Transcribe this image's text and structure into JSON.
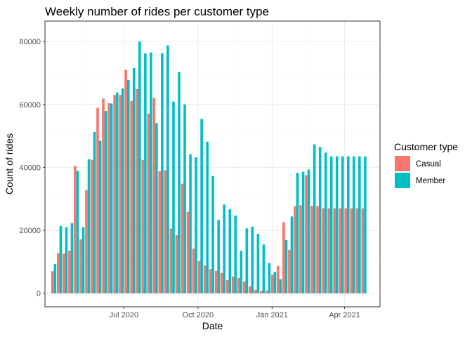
{
  "chart_data": {
    "type": "bar",
    "title": "Weekly number of rides per customer type",
    "xlabel": "Date",
    "ylabel": "Count of rides",
    "x_ticks": [
      "Jul 2020",
      "Oct 2020",
      "Jan 2021",
      "Apr 2021"
    ],
    "y_ticks": [
      "0",
      "20000",
      "40000",
      "60000",
      "80000"
    ],
    "ylim": [
      0,
      82000
    ],
    "grid": true,
    "legend": {
      "title": "Customer type",
      "position": "right"
    },
    "x_dates": [
      "2020-04-05",
      "2020-04-12",
      "2020-04-19",
      "2020-04-26",
      "2020-05-03",
      "2020-05-10",
      "2020-05-17",
      "2020-05-24",
      "2020-05-31",
      "2020-06-07",
      "2020-06-14",
      "2020-06-21",
      "2020-06-28",
      "2020-07-05",
      "2020-07-12",
      "2020-07-19",
      "2020-07-26",
      "2020-08-02",
      "2020-08-09",
      "2020-08-16",
      "2020-08-23",
      "2020-08-30",
      "2020-09-06",
      "2020-09-13",
      "2020-09-20",
      "2020-09-27",
      "2020-10-04",
      "2020-10-11",
      "2020-10-18",
      "2020-10-25",
      "2020-11-01",
      "2020-11-08",
      "2020-11-15",
      "2020-11-22",
      "2020-11-29",
      "2020-12-06",
      "2020-12-13",
      "2020-12-20",
      "2020-12-27",
      "2021-01-03",
      "2021-01-10",
      "2021-01-17",
      "2021-01-24",
      "2021-01-31",
      "2021-02-07",
      "2021-02-14",
      "2021-02-21",
      "2021-02-28",
      "2021-03-07",
      "2021-03-14",
      "2021-03-21",
      "2021-03-28",
      "2021-04-04",
      "2021-04-11",
      "2021-04-18",
      "2021-04-25"
    ],
    "series": [
      {
        "name": "Casual",
        "color": "#F8766D",
        "values": [
          7000,
          12800,
          12600,
          13500,
          40500,
          17200,
          32800,
          42400,
          58900,
          61900,
          60400,
          63000,
          63000,
          71000,
          61100,
          64900,
          42400,
          57100,
          62100,
          38800,
          39100,
          20600,
          18500,
          34800,
          25900,
          14200,
          10200,
          8800,
          7700,
          7100,
          6500,
          4200,
          5300,
          4900,
          3800,
          2200,
          1100,
          800,
          900,
          5900,
          8700,
          22600,
          13800,
          27700,
          28000,
          37500,
          27800,
          27700,
          27000,
          27000,
          27000,
          27000,
          27000,
          27000,
          27000,
          27000
        ]
      },
      {
        "name": "Member",
        "color": "#00BFC4",
        "values": [
          9300,
          21400,
          21000,
          22300,
          38900,
          21000,
          42600,
          51300,
          48500,
          57900,
          60300,
          63800,
          65100,
          67800,
          71600,
          80000,
          76200,
          76500,
          54100,
          76300,
          78800,
          60900,
          70300,
          60000,
          44200,
          43200,
          55400,
          48200,
          37200,
          23300,
          28200,
          26700,
          24700,
          13500,
          20600,
          21200,
          18900,
          15500,
          9600,
          6800,
          4500,
          16900,
          24400,
          38300,
          38600,
          39300,
          47300,
          46500,
          44700,
          43500,
          43500,
          43500,
          43500,
          43500,
          43500,
          43500
        ]
      }
    ]
  }
}
